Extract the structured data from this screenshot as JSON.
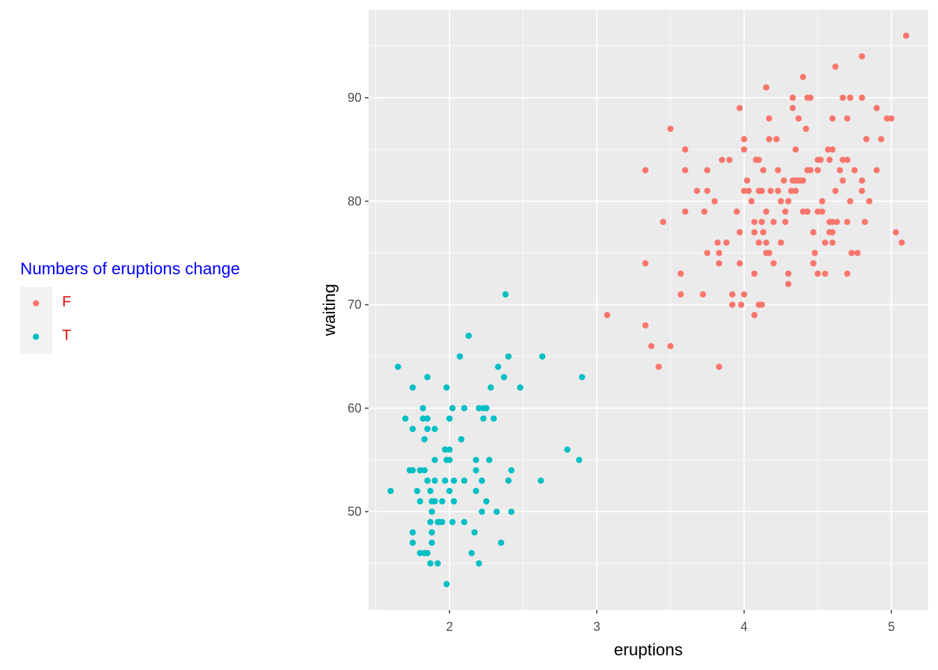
{
  "legend": {
    "title": "Numbers of eruptions change",
    "title_color": "#0000ff",
    "label_color": "#e00000",
    "entries": [
      {
        "label": "F",
        "color": "#f8766d"
      },
      {
        "label": "T",
        "color": "#00bfc4"
      }
    ]
  },
  "chart_data": {
    "type": "scatter",
    "xlabel": "eruptions",
    "ylabel": "waiting",
    "xlim": [
      1.45,
      5.25
    ],
    "ylim": [
      40.5,
      98.5
    ],
    "xticks": [
      2,
      3,
      4,
      5
    ],
    "yticks": [
      50,
      60,
      70,
      80,
      90
    ],
    "grid": true,
    "panel_background": "#ebebeb",
    "legend_position": "left",
    "series": [
      {
        "name": "F",
        "color": "#f8766d",
        "points": [
          [
            3.07,
            69
          ],
          [
            3.33,
            83
          ],
          [
            3.33,
            74
          ],
          [
            3.33,
            68
          ],
          [
            3.37,
            66
          ],
          [
            3.42,
            64
          ],
          [
            3.45,
            78
          ],
          [
            3.5,
            87
          ],
          [
            3.5,
            66
          ],
          [
            3.57,
            73
          ],
          [
            3.57,
            71
          ],
          [
            3.6,
            85
          ],
          [
            3.6,
            83
          ],
          [
            3.6,
            79
          ],
          [
            3.68,
            81
          ],
          [
            3.72,
            71
          ],
          [
            3.73,
            79
          ],
          [
            3.75,
            83
          ],
          [
            3.75,
            81
          ],
          [
            3.75,
            75
          ],
          [
            3.8,
            80
          ],
          [
            3.82,
            76
          ],
          [
            3.83,
            75
          ],
          [
            3.83,
            74
          ],
          [
            3.83,
            64
          ],
          [
            3.85,
            84
          ],
          [
            3.88,
            76
          ],
          [
            3.9,
            84
          ],
          [
            3.92,
            71
          ],
          [
            3.92,
            70
          ],
          [
            3.95,
            79
          ],
          [
            3.97,
            89
          ],
          [
            3.97,
            77
          ],
          [
            3.97,
            74
          ],
          [
            3.98,
            70
          ],
          [
            4.0,
            86
          ],
          [
            4.0,
            85
          ],
          [
            4.0,
            81
          ],
          [
            4.0,
            71
          ],
          [
            4.02,
            82
          ],
          [
            4.03,
            81
          ],
          [
            4.05,
            80
          ],
          [
            4.07,
            78
          ],
          [
            4.07,
            77
          ],
          [
            4.07,
            73
          ],
          [
            4.07,
            69
          ],
          [
            4.08,
            84
          ],
          [
            4.1,
            84
          ],
          [
            4.1,
            81
          ],
          [
            4.1,
            76
          ],
          [
            4.1,
            70
          ],
          [
            4.12,
            81
          ],
          [
            4.12,
            78
          ],
          [
            4.12,
            70
          ],
          [
            4.13,
            77
          ],
          [
            4.13,
            83
          ],
          [
            4.15,
            91
          ],
          [
            4.15,
            79
          ],
          [
            4.15,
            76
          ],
          [
            4.15,
            75
          ],
          [
            4.17,
            88
          ],
          [
            4.17,
            86
          ],
          [
            4.17,
            75
          ],
          [
            4.18,
            81
          ],
          [
            4.2,
            78
          ],
          [
            4.2,
            74
          ],
          [
            4.22,
            86
          ],
          [
            4.23,
            81
          ],
          [
            4.23,
            83
          ],
          [
            4.25,
            80
          ],
          [
            4.25,
            76
          ],
          [
            4.27,
            82
          ],
          [
            4.28,
            78
          ],
          [
            4.28,
            79
          ],
          [
            4.3,
            80
          ],
          [
            4.3,
            73
          ],
          [
            4.3,
            72
          ],
          [
            4.32,
            81
          ],
          [
            4.33,
            90
          ],
          [
            4.33,
            89
          ],
          [
            4.33,
            82
          ],
          [
            4.35,
            82
          ],
          [
            4.35,
            81
          ],
          [
            4.35,
            85
          ],
          [
            4.37,
            88
          ],
          [
            4.37,
            82
          ],
          [
            4.38,
            82
          ],
          [
            4.4,
            92
          ],
          [
            4.4,
            82
          ],
          [
            4.4,
            79
          ],
          [
            4.42,
            87
          ],
          [
            4.43,
            83
          ],
          [
            4.43,
            79
          ],
          [
            4.43,
            90
          ],
          [
            4.45,
            83
          ],
          [
            4.45,
            90
          ],
          [
            4.47,
            77
          ],
          [
            4.47,
            74
          ],
          [
            4.48,
            75
          ],
          [
            4.5,
            84
          ],
          [
            4.5,
            83
          ],
          [
            4.5,
            73
          ],
          [
            4.5,
            79
          ],
          [
            4.52,
            84
          ],
          [
            4.53,
            80
          ],
          [
            4.53,
            79
          ],
          [
            4.55,
            76
          ],
          [
            4.55,
            73
          ],
          [
            4.57,
            85
          ],
          [
            4.58,
            84
          ],
          [
            4.58,
            78
          ],
          [
            4.58,
            77
          ],
          [
            4.6,
            85
          ],
          [
            4.6,
            78
          ],
          [
            4.6,
            77
          ],
          [
            4.6,
            76
          ],
          [
            4.6,
            88
          ],
          [
            4.62,
            93
          ],
          [
            4.62,
            81
          ],
          [
            4.63,
            78
          ],
          [
            4.65,
            83
          ],
          [
            4.67,
            90
          ],
          [
            4.67,
            84
          ],
          [
            4.67,
            82
          ],
          [
            4.7,
            88
          ],
          [
            4.7,
            84
          ],
          [
            4.7,
            78
          ],
          [
            4.7,
            73
          ],
          [
            4.72,
            90
          ],
          [
            4.72,
            80
          ],
          [
            4.73,
            75
          ],
          [
            4.75,
            83
          ],
          [
            4.77,
            75
          ],
          [
            4.8,
            94
          ],
          [
            4.8,
            90
          ],
          [
            4.8,
            82
          ],
          [
            4.8,
            81
          ],
          [
            4.82,
            78
          ],
          [
            4.83,
            86
          ],
          [
            4.85,
            80
          ],
          [
            4.9,
            89
          ],
          [
            4.9,
            83
          ],
          [
            4.93,
            86
          ],
          [
            4.97,
            88
          ],
          [
            5.0,
            88
          ],
          [
            5.03,
            77
          ],
          [
            5.07,
            76
          ],
          [
            5.1,
            96
          ]
        ]
      },
      {
        "name": "T",
        "color": "#00bfc4",
        "points": [
          [
            1.6,
            52
          ],
          [
            1.65,
            64
          ],
          [
            1.7,
            59
          ],
          [
            1.73,
            54
          ],
          [
            1.75,
            62
          ],
          [
            1.75,
            58
          ],
          [
            1.75,
            48
          ],
          [
            1.75,
            47
          ],
          [
            1.75,
            54
          ],
          [
            1.78,
            52
          ],
          [
            1.8,
            54
          ],
          [
            1.8,
            51
          ],
          [
            1.8,
            46
          ],
          [
            1.82,
            60
          ],
          [
            1.82,
            59
          ],
          [
            1.83,
            54
          ],
          [
            1.83,
            46
          ],
          [
            1.83,
            57
          ],
          [
            1.85,
            63
          ],
          [
            1.85,
            59
          ],
          [
            1.85,
            58
          ],
          [
            1.85,
            53
          ],
          [
            1.85,
            46
          ],
          [
            1.87,
            52
          ],
          [
            1.87,
            49
          ],
          [
            1.87,
            45
          ],
          [
            1.88,
            50
          ],
          [
            1.88,
            48
          ],
          [
            1.88,
            47
          ],
          [
            1.88,
            51
          ],
          [
            1.9,
            58
          ],
          [
            1.9,
            55
          ],
          [
            1.9,
            53
          ],
          [
            1.9,
            51
          ],
          [
            1.92,
            49
          ],
          [
            1.92,
            45
          ],
          [
            1.93,
            49
          ],
          [
            1.95,
            51
          ],
          [
            1.95,
            49
          ],
          [
            1.97,
            56
          ],
          [
            1.97,
            53
          ],
          [
            1.98,
            62
          ],
          [
            1.98,
            55
          ],
          [
            1.98,
            43
          ],
          [
            2.0,
            59
          ],
          [
            2.0,
            56
          ],
          [
            2.0,
            55
          ],
          [
            2.0,
            52
          ],
          [
            2.02,
            60
          ],
          [
            2.02,
            49
          ],
          [
            2.03,
            53
          ],
          [
            2.03,
            51
          ],
          [
            2.07,
            65
          ],
          [
            2.08,
            57
          ],
          [
            2.1,
            60
          ],
          [
            2.1,
            53
          ],
          [
            2.1,
            49
          ],
          [
            2.13,
            67
          ],
          [
            2.15,
            46
          ],
          [
            2.17,
            48
          ],
          [
            2.18,
            55
          ],
          [
            2.18,
            54
          ],
          [
            2.18,
            52
          ],
          [
            2.2,
            60
          ],
          [
            2.2,
            45
          ],
          [
            2.22,
            53
          ],
          [
            2.22,
            50
          ],
          [
            2.23,
            60
          ],
          [
            2.23,
            59
          ],
          [
            2.25,
            60
          ],
          [
            2.25,
            51
          ],
          [
            2.27,
            55
          ],
          [
            2.28,
            62
          ],
          [
            2.3,
            59
          ],
          [
            2.32,
            50
          ],
          [
            2.33,
            64
          ],
          [
            2.35,
            47
          ],
          [
            2.37,
            63
          ],
          [
            2.38,
            71
          ],
          [
            2.4,
            65
          ],
          [
            2.4,
            53
          ],
          [
            2.42,
            54
          ],
          [
            2.42,
            50
          ],
          [
            2.48,
            62
          ],
          [
            2.62,
            53
          ],
          [
            2.63,
            65
          ],
          [
            2.8,
            56
          ],
          [
            2.88,
            55
          ],
          [
            2.9,
            63
          ]
        ]
      }
    ]
  }
}
